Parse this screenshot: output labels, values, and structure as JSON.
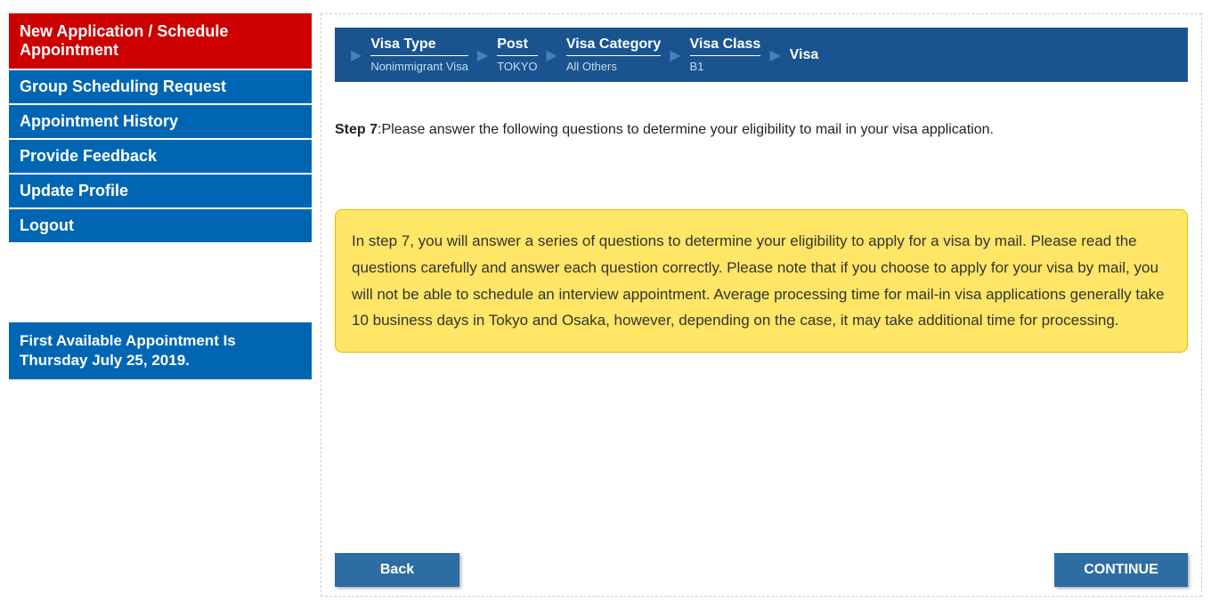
{
  "sidebar": {
    "items": [
      {
        "label": "New Application / Schedule Appointment",
        "active": true
      },
      {
        "label": "Group Scheduling Request",
        "active": false
      },
      {
        "label": "Appointment History",
        "active": false
      },
      {
        "label": "Provide Feedback",
        "active": false
      },
      {
        "label": "Update Profile",
        "active": false
      },
      {
        "label": "Logout",
        "active": false
      }
    ],
    "appointment_info": "First Available Appointment Is Thursday July 25, 2019."
  },
  "breadcrumb": {
    "items": [
      {
        "label": "Visa Type",
        "value": "Nonimmigrant Visa"
      },
      {
        "label": "Post",
        "value": "TOKYO"
      },
      {
        "label": "Visa Category",
        "value": "All Others"
      },
      {
        "label": "Visa Class",
        "value": "B1"
      },
      {
        "label": "Visa",
        "value": ""
      }
    ]
  },
  "step": {
    "label": "Step 7",
    "text": ":Please answer the following questions to determine your eligibility to mail in your visa application."
  },
  "info_box": "In step 7, you will answer a series of questions to determine your eligibility to apply for a visa by mail. Please read the questions carefully and answer each question correctly.  Please note that if you choose to apply for your visa by mail, you will not be able to schedule an interview appointment. Average processing time for mail-in visa applications generally take 10 business days in Tokyo and Osaka, however, depending on the case, it may take additional time for processing.",
  "buttons": {
    "back": "Back",
    "continue": "CONTINUE"
  },
  "colors": {
    "sidebar_bg": "#0066b3",
    "sidebar_active_bg": "#cc0000",
    "breadcrumb_bg": "#1a5490",
    "info_box_bg": "#ffe666",
    "info_box_border": "#e6b800",
    "button_bg": "#2e6da4"
  }
}
